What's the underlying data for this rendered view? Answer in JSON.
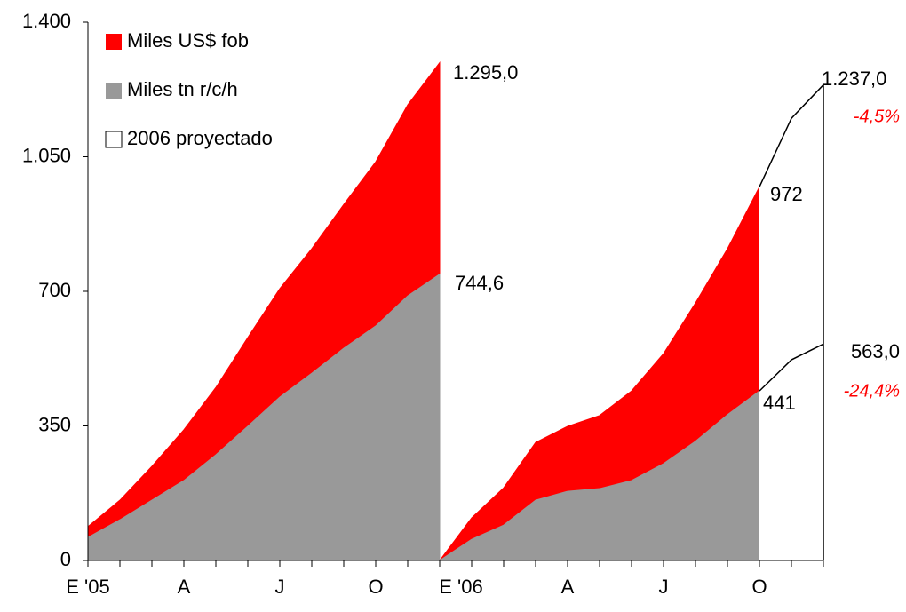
{
  "chart_data": {
    "type": "area",
    "categories": [
      "E '05",
      null,
      null,
      "A",
      null,
      null,
      "J",
      null,
      null,
      "O",
      null,
      null,
      "E '06",
      null,
      null,
      "A",
      null,
      null,
      "J",
      null,
      null,
      "O",
      null,
      null
    ],
    "ylim": [
      0,
      1400
    ],
    "yticks": [
      0,
      350,
      700,
      {
        "value": 1050,
        "label": "1.050"
      },
      {
        "value": 1400,
        "label": "1.400"
      }
    ],
    "series": [
      {
        "name": "Miles US$ fob",
        "color": "#ff0000",
        "segments": [
          [
            88,
            157,
            245,
            340,
            450,
            580,
            707,
            811,
            926,
            1037,
            1185,
            1295,
            null,
            null,
            null,
            null,
            null,
            null,
            null,
            null,
            null,
            null,
            null,
            null
          ],
          [
            null,
            null,
            null,
            null,
            null,
            null,
            null,
            null,
            null,
            null,
            null,
            0,
            111,
            189,
            307,
            349,
            377,
            441,
            538,
            670,
            811,
            972,
            null,
            null
          ]
        ]
      },
      {
        "name": "Miles tn r/c/h",
        "color": "#999999",
        "segments": [
          [
            60,
            106,
            157,
            208,
            275,
            349,
            425,
            487,
            552,
            610,
            688,
            744.6,
            null,
            null,
            null,
            null,
            null,
            null,
            null,
            null,
            null,
            null,
            null,
            null
          ],
          [
            null,
            null,
            null,
            null,
            null,
            null,
            null,
            null,
            null,
            null,
            null,
            0,
            55,
            92,
            157,
            180,
            187,
            208,
            252,
            310,
            379,
            441,
            null,
            null
          ]
        ]
      },
      {
        "name": "2006 proyectado",
        "color": "#ffffff",
        "segments": [
          [
            null,
            null,
            null,
            null,
            null,
            null,
            null,
            null,
            null,
            null,
            null,
            null,
            null,
            null,
            null,
            null,
            null,
            null,
            null,
            null,
            null,
            972,
            1150,
            1237
          ],
          [
            null,
            null,
            null,
            null,
            null,
            null,
            null,
            null,
            null,
            null,
            null,
            null,
            null,
            null,
            null,
            null,
            null,
            null,
            null,
            null,
            null,
            441,
            522,
            563
          ]
        ]
      }
    ],
    "labels": [
      {
        "value": 1295,
        "label": "1.295,0"
      },
      {
        "value": 744.6,
        "label": "744,6"
      },
      {
        "value": 972,
        "label": "972"
      },
      {
        "value": 441,
        "label": "441"
      },
      {
        "value": 1237,
        "label": "1.237,0"
      },
      {
        "value": -4.5,
        "label": "-4,5%",
        "color": "#ff0000"
      },
      {
        "value": 563,
        "label": "563,0"
      },
      {
        "value": -24.4,
        "label": "-24,4%",
        "color": "#ff0000"
      }
    ]
  }
}
